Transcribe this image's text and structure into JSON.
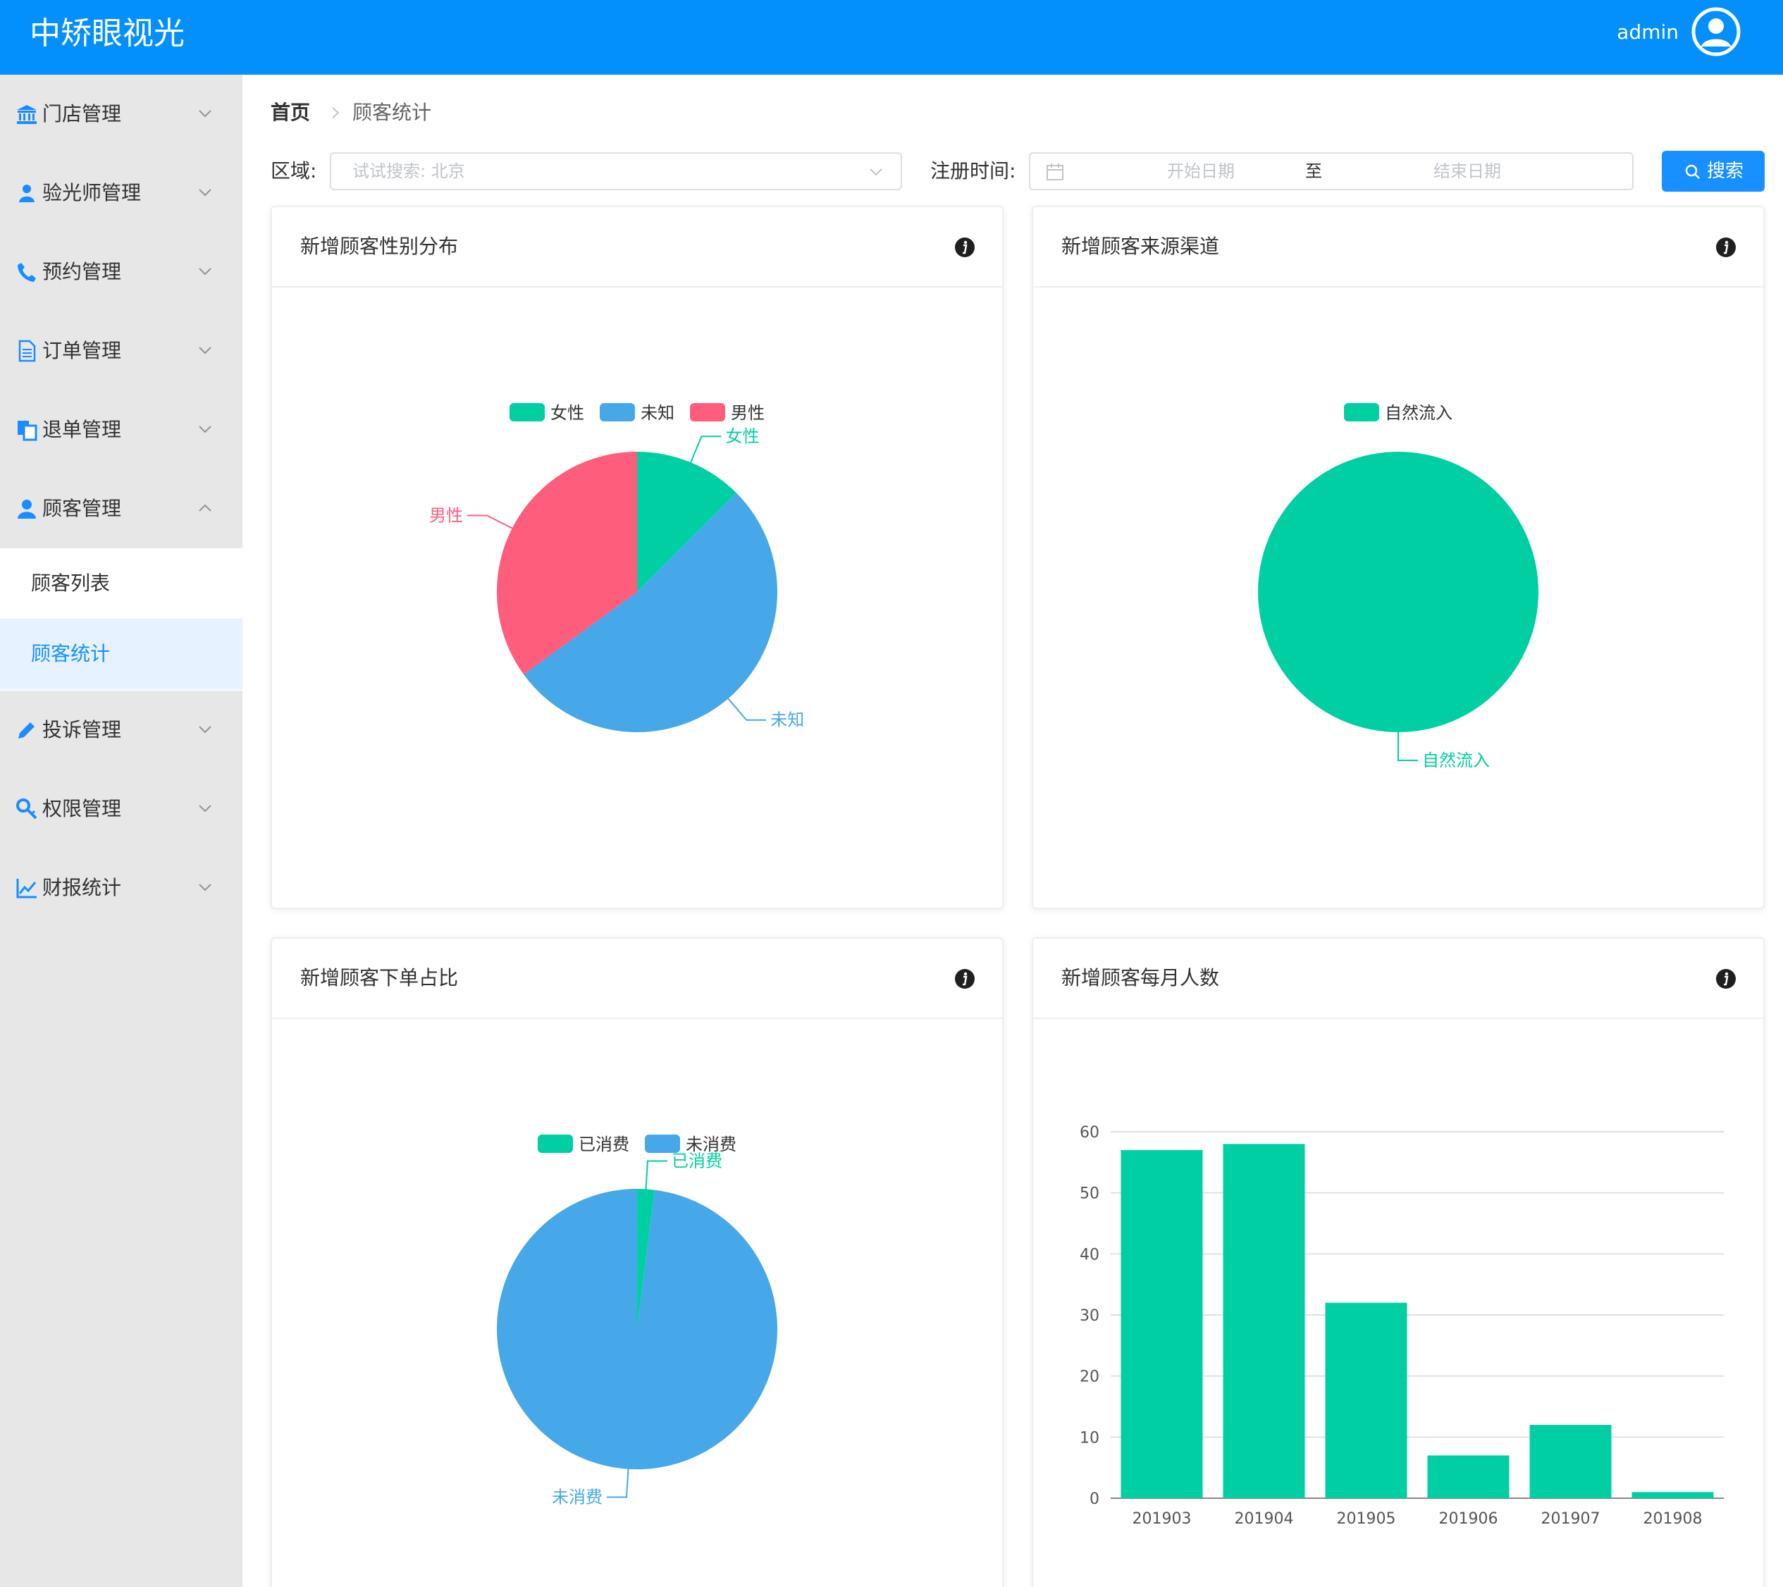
{
  "app": {
    "title": "中矫眼视光",
    "user": "admin"
  },
  "sidebar": {
    "items": [
      {
        "label": "门店管理",
        "icon": "bank-icon"
      },
      {
        "label": "验光师管理",
        "icon": "people-icon"
      },
      {
        "label": "预约管理",
        "icon": "phone-icon"
      },
      {
        "label": "订单管理",
        "icon": "document-icon"
      },
      {
        "label": "退单管理",
        "icon": "copy-icon"
      },
      {
        "label": "顾客管理",
        "icon": "user-icon",
        "expanded": true
      },
      {
        "label": "投诉管理",
        "icon": "pencil-icon"
      },
      {
        "label": "权限管理",
        "icon": "key-icon"
      },
      {
        "label": "财报统计",
        "icon": "trend-chart-icon"
      }
    ],
    "sub_items": [
      {
        "label": "顾客列表",
        "active": false
      },
      {
        "label": "顾客统计",
        "active": true
      }
    ]
  },
  "breadcrumb": {
    "home": "首页",
    "current": "顾客统计"
  },
  "filters": {
    "region_label": "区域:",
    "region_placeholder": "试试搜索: 北京",
    "date_label": "注册时间:",
    "start_placeholder": "开始日期",
    "range_separator": "至",
    "end_placeholder": "结束日期",
    "search_button": "搜索"
  },
  "colors": {
    "header": "#0390fc",
    "green": "#00cfa3",
    "blue": "#46a8e8",
    "red": "#fe5d7b",
    "primary": "#1890ff"
  },
  "cards": {
    "gender": {
      "title": "新增顾客性别分布"
    },
    "source": {
      "title": "新增顾客来源渠道"
    },
    "order": {
      "title": "新增顾客下单占比"
    },
    "monthly": {
      "title": "新增顾客每月人数"
    }
  },
  "chart_data": [
    {
      "type": "pie",
      "title": "新增顾客性别分布",
      "legend_position": "top-center",
      "slices": [
        {
          "name": "女性",
          "value": 12.5,
          "color": "#00cfa3"
        },
        {
          "name": "未知",
          "value": 52.5,
          "color": "#46a8e8"
        },
        {
          "name": "男性",
          "value": 35,
          "color": "#fe5d7b"
        }
      ]
    },
    {
      "type": "pie",
      "title": "新增顾客来源渠道",
      "legend_position": "top-center",
      "slices": [
        {
          "name": "自然流入",
          "value": 100,
          "color": "#00cfa3"
        }
      ]
    },
    {
      "type": "pie",
      "title": "新增顾客下单占比",
      "legend_position": "top-center",
      "slices": [
        {
          "name": "已消费",
          "value": 2,
          "color": "#00cfa3"
        },
        {
          "name": "未消费",
          "value": 98,
          "color": "#46a8e8"
        }
      ]
    },
    {
      "type": "bar",
      "title": "新增顾客每月人数",
      "categories": [
        "201903",
        "201904",
        "201905",
        "201906",
        "201907",
        "201908"
      ],
      "values": [
        57,
        58,
        32,
        7,
        12,
        1
      ],
      "ylim": [
        0,
        60
      ],
      "yticks": [
        0,
        10,
        20,
        30,
        40,
        50,
        60
      ],
      "grid": true,
      "color": "#00cfa3"
    }
  ]
}
